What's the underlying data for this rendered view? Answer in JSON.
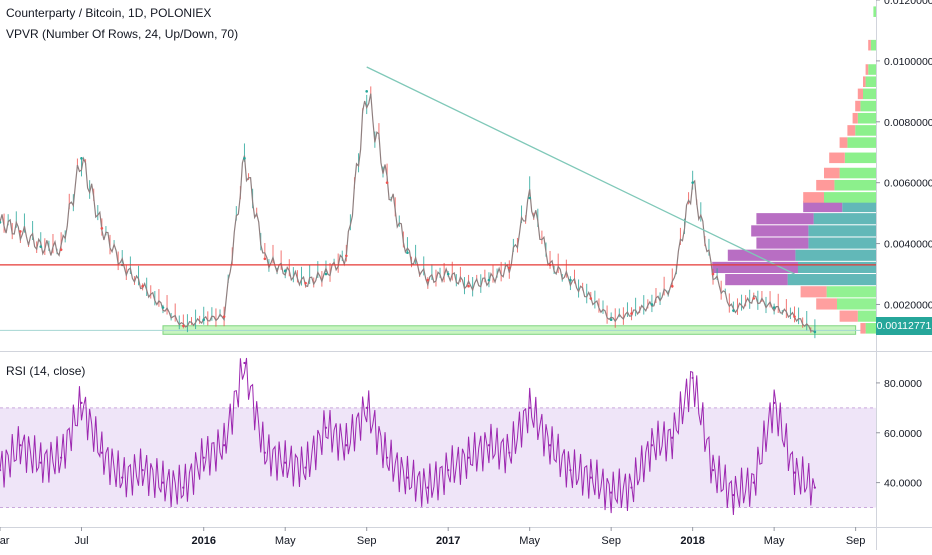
{
  "header": {
    "title": "Counterparty / Bitcoin, 1D, POLONIEX",
    "indicator": "VPVR (Number Of Rows, 24, Up/Down, 70)",
    "rsi_label": "RSI (14, close)"
  },
  "colors": {
    "price_up": "#26a69a",
    "price_down": "#ef5350",
    "vp_up": "#5ab4b4",
    "vp_down": "#b466c0",
    "vp_up_outside": "#8cf08c",
    "vp_down_outside": "#ff9a9a",
    "rsi_line": "#9c27b0",
    "rsi_band": "#eadcf5",
    "trendline": "#7fc8b8",
    "support_line": "#e53935",
    "zone_fill": "#c8f5c0",
    "zone_border": "#7fd47f",
    "current_price": "#26a69a"
  },
  "chart_data": [
    {
      "type": "line",
      "title": "Counterparty / Bitcoin, 1D, POLONIEX",
      "x": [
        "2015-03",
        "2015-04",
        "2015-05",
        "2015-06",
        "2015-07",
        "2015-08",
        "2015-09",
        "2015-10",
        "2015-11",
        "2015-12",
        "2016-01",
        "2016-02",
        "2016-03",
        "2016-04",
        "2016-05",
        "2016-06",
        "2016-07",
        "2016-08",
        "2016-09",
        "2016-10",
        "2016-11",
        "2016-12",
        "2017-01",
        "2017-02",
        "2017-03",
        "2017-04",
        "2017-05",
        "2017-06",
        "2017-07",
        "2017-08",
        "2017-09",
        "2017-10",
        "2017-11",
        "2017-12",
        "2018-01",
        "2018-02",
        "2018-03",
        "2018-04",
        "2018-05",
        "2018-06",
        "2018-07"
      ],
      "series": [
        {
          "values": [
            0.0047,
            0.0044,
            0.0039,
            0.0038,
            0.0068,
            0.0045,
            0.0033,
            0.0026,
            0.0019,
            0.0013,
            0.0015,
            0.0016,
            0.0068,
            0.0035,
            0.0031,
            0.0027,
            0.003,
            0.0036,
            0.009,
            0.006,
            0.0037,
            0.0028,
            0.003,
            0.0026,
            0.0028,
            0.0032,
            0.0055,
            0.0033,
            0.0028,
            0.0022,
            0.0015,
            0.0017,
            0.002,
            0.0026,
            0.006,
            0.003,
            0.0018,
            0.0022,
            0.0019,
            0.0016,
            0.0011
          ]
        }
      ],
      "x_tick_labels": [
        "Mar",
        "Jul",
        "2016",
        "May",
        "Sep",
        "2017",
        "May",
        "Sep",
        "2018",
        "May",
        "Sep"
      ],
      "ylim": [
        0.0008,
        0.012
      ],
      "y_tick_labels": [
        "0.01200000",
        "0.01000000",
        "0.00800000",
        "0.00600000",
        "0.00400000",
        "0.00200000"
      ],
      "current_price_label": "0.00112771",
      "volume_profile": {
        "rows": 24,
        "up_down_percent": 70,
        "price_levels": [
          0.0052,
          0.0048,
          0.0044,
          0.004,
          0.0036,
          0.0032,
          0.0028,
          0.0024,
          0.002,
          0.0016
        ],
        "up_volume": [
          13,
          24,
          26,
          26,
          31,
          30,
          34,
          19,
          15,
          7
        ],
        "down_volume": [
          15,
          22,
          22,
          20,
          26,
          33,
          24,
          10,
          8,
          7
        ]
      },
      "upper_volume_tail": {
        "price_levels": [
          0.0116,
          0.0105,
          0.0097,
          0.0093,
          0.0089,
          0.0085,
          0.0081,
          0.0077,
          0.0073,
          0.0068,
          0.0063,
          0.0059,
          0.0055,
          0.0012
        ],
        "up_volume": [
          1,
          2,
          3,
          4,
          5,
          6,
          7,
          8,
          11,
          12,
          14,
          16,
          20,
          4
        ],
        "down_volume": [
          0,
          1,
          1,
          1,
          2,
          2,
          2,
          3,
          3,
          6,
          6,
          7,
          8,
          2
        ]
      },
      "trendline": {
        "start": [
          "2016-09",
          0.0098
        ],
        "end": [
          "2018-06",
          0.003
        ]
      },
      "support_line": 0.0033,
      "support_zone": {
        "from": [
          "2015-11",
          0.00102
        ],
        "to": [
          "2018-09",
          0.0013
        ]
      }
    },
    {
      "type": "line",
      "title": "RSI (14, close)",
      "x": [
        "2015-03",
        "2015-04",
        "2015-05",
        "2015-06",
        "2015-07",
        "2015-08",
        "2015-09",
        "2015-10",
        "2015-11",
        "2015-12",
        "2016-01",
        "2016-02",
        "2016-03",
        "2016-04",
        "2016-05",
        "2016-06",
        "2016-07",
        "2016-08",
        "2016-09",
        "2016-10",
        "2016-11",
        "2016-12",
        "2017-01",
        "2017-02",
        "2017-03",
        "2017-04",
        "2017-05",
        "2017-06",
        "2017-07",
        "2017-08",
        "2017-09",
        "2017-10",
        "2017-11",
        "2017-12",
        "2018-01",
        "2018-02",
        "2018-03",
        "2018-04",
        "2018-05",
        "2018-06",
        "2018-07"
      ],
      "series": [
        {
          "values": [
            45,
            55,
            48,
            50,
            72,
            52,
            42,
            45,
            40,
            38,
            50,
            55,
            88,
            52,
            48,
            46,
            62,
            55,
            70,
            50,
            42,
            38,
            45,
            50,
            55,
            52,
            70,
            55,
            45,
            42,
            36,
            38,
            55,
            58,
            82,
            45,
            35,
            40,
            72,
            44,
            38
          ]
        }
      ],
      "ylim": [
        25,
        92
      ],
      "y_tick_labels": [
        "80.0000",
        "60.0000",
        "40.0000"
      ],
      "band": [
        30,
        70
      ]
    }
  ]
}
